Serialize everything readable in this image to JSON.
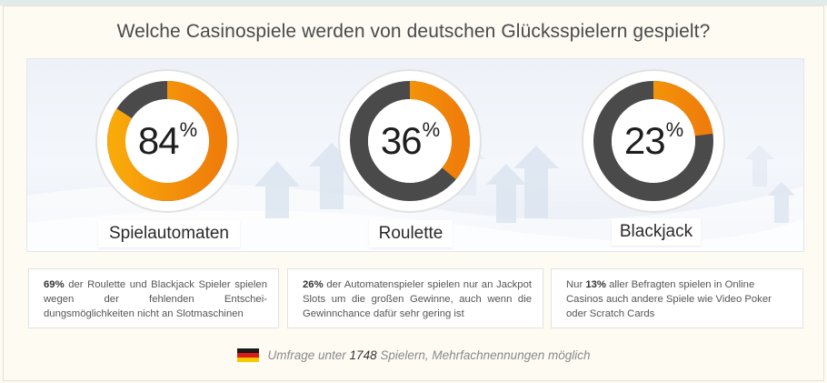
{
  "title": "Welche Casinospiele werden von deutschen Glücksspielern gespielt?",
  "colors": {
    "accent": "#f9a90a",
    "accent_dark": "#ef7d0a",
    "track": "#4a4a4a",
    "ring": "#ffffff"
  },
  "chart_data": {
    "type": "pie",
    "title": "Welche Casinospiele werden von deutschen Glücksspielern gespielt?",
    "categories": [
      "Spielautomaten",
      "Roulette",
      "Blackjack"
    ],
    "values": [
      84,
      36,
      23
    ],
    "unit": "%",
    "gauges": [
      {
        "label": "Spielautomaten",
        "value": 84,
        "display": "84",
        "unit": "%"
      },
      {
        "label": "Roulette",
        "value": 36,
        "display": "36",
        "unit": "%"
      },
      {
        "label": "Blackjack",
        "value": 23,
        "display": "23",
        "unit": "%"
      }
    ]
  },
  "cards": [
    {
      "highlight": "69%",
      "text": " der Roulette und Blackjack Spieler spielen wegen der fehlenden Entschei-dungsmöglichkeiten nicht an Slotmaschinen"
    },
    {
      "highlight": "26%",
      "text": " der Automatenspieler spielen nur an Jackpot Slots um die großen Gewinne, auch wenn die Gewinnchance dafür sehr gering ist"
    },
    {
      "prefix": "Nur ",
      "highlight": "13%",
      "text": " aller Befragten spielen in Online Casinos auch andere Spiele wie Video Poker oder Scratch Cards"
    }
  ],
  "footer": {
    "before": "Umfrage unter ",
    "count": "1748",
    "after": " Spielern, Mehrfachnennungen möglich",
    "flag_icon": "germany-flag-icon"
  }
}
